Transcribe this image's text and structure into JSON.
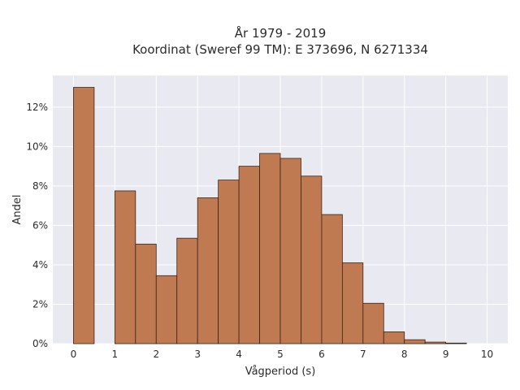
{
  "chart_data": {
    "type": "bar",
    "title_lines": [
      "År 1979 - 2019",
      "Koordinat (Sweref 99 TM): E 373696, N 6271334"
    ],
    "xlabel": "Vågperiod (s)",
    "ylabel": "Andel",
    "bin_width": 0.5,
    "bins": [
      {
        "x0": 0.0,
        "value": 13.0
      },
      {
        "x0": 0.5,
        "value": 0.0
      },
      {
        "x0": 1.0,
        "value": 7.75
      },
      {
        "x0": 1.5,
        "value": 5.05
      },
      {
        "x0": 2.0,
        "value": 3.45
      },
      {
        "x0": 2.5,
        "value": 5.35
      },
      {
        "x0": 3.0,
        "value": 7.4
      },
      {
        "x0": 3.5,
        "value": 8.3
      },
      {
        "x0": 4.0,
        "value": 9.0
      },
      {
        "x0": 4.5,
        "value": 9.65
      },
      {
        "x0": 5.0,
        "value": 9.4
      },
      {
        "x0": 5.5,
        "value": 8.5
      },
      {
        "x0": 6.0,
        "value": 6.55
      },
      {
        "x0": 6.5,
        "value": 4.1
      },
      {
        "x0": 7.0,
        "value": 2.05
      },
      {
        "x0": 7.5,
        "value": 0.6
      },
      {
        "x0": 8.0,
        "value": 0.2
      },
      {
        "x0": 8.5,
        "value": 0.08
      },
      {
        "x0": 9.0,
        "value": 0.03
      },
      {
        "x0": 9.5,
        "value": 0.0
      }
    ],
    "xlim": [
      -0.5,
      10.5
    ],
    "ylim": [
      0,
      13.6
    ],
    "xticks": [
      0,
      1,
      2,
      3,
      4,
      5,
      6,
      7,
      8,
      9,
      10
    ],
    "yticks": [
      0,
      2,
      4,
      6,
      8,
      10,
      12
    ],
    "ytick_suffix": "%",
    "grid": true,
    "colors": {
      "bar_fill": "#c07a52",
      "bar_edge": "#3a2418",
      "plot_bg": "#e9e9f1",
      "grid": "#ffffff"
    }
  }
}
